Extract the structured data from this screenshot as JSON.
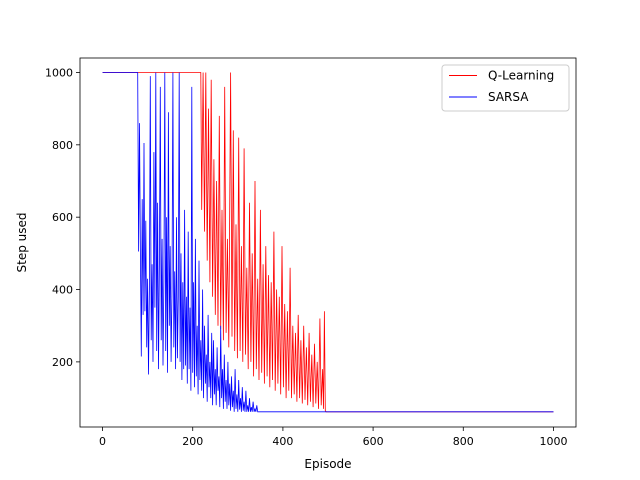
{
  "chart_data": {
    "type": "line",
    "title": "",
    "xlabel": "Episode",
    "ylabel": "Step used",
    "xlim": [
      -50,
      1050
    ],
    "ylim": [
      20,
      1040
    ],
    "xticks": [
      0,
      200,
      400,
      600,
      800,
      1000
    ],
    "yticks": [
      200,
      400,
      600,
      800,
      1000
    ],
    "grid": false,
    "legend_position": "top-right",
    "series": [
      {
        "name": "Q-Learning",
        "color": "#ff0000",
        "points": [
          [
            0,
            1000
          ],
          [
            218,
            1000
          ],
          [
            220,
            620
          ],
          [
            223,
            1000
          ],
          [
            226,
            560
          ],
          [
            229,
            1000
          ],
          [
            232,
            480
          ],
          [
            235,
            900
          ],
          [
            238,
            420
          ],
          [
            241,
            980
          ],
          [
            244,
            380
          ],
          [
            247,
            760
          ],
          [
            250,
            330
          ],
          [
            253,
            700
          ],
          [
            256,
            300
          ],
          [
            259,
            880
          ],
          [
            262,
            290
          ],
          [
            265,
            620
          ],
          [
            268,
            260
          ],
          [
            271,
            960
          ],
          [
            274,
            280
          ],
          [
            277,
            540
          ],
          [
            280,
            240
          ],
          [
            284,
            1000
          ],
          [
            287,
            270
          ],
          [
            290,
            840
          ],
          [
            293,
            230
          ],
          [
            296,
            580
          ],
          [
            299,
            210
          ],
          [
            302,
            820
          ],
          [
            305,
            230
          ],
          [
            308,
            520
          ],
          [
            311,
            200
          ],
          [
            314,
            790
          ],
          [
            317,
            220
          ],
          [
            320,
            460
          ],
          [
            323,
            180
          ],
          [
            326,
            640
          ],
          [
            329,
            200
          ],
          [
            332,
            500
          ],
          [
            335,
            160
          ],
          [
            338,
            700
          ],
          [
            341,
            180
          ],
          [
            344,
            430
          ],
          [
            347,
            150
          ],
          [
            350,
            620
          ],
          [
            353,
            170
          ],
          [
            356,
            470
          ],
          [
            359,
            140
          ],
          [
            362,
            520
          ],
          [
            365,
            160
          ],
          [
            368,
            440
          ],
          [
            371,
            130
          ],
          [
            374,
            420
          ],
          [
            377,
            150
          ],
          [
            380,
            560
          ],
          [
            383,
            120
          ],
          [
            386,
            400
          ],
          [
            389,
            140
          ],
          [
            392,
            380
          ],
          [
            395,
            110
          ],
          [
            398,
            520
          ],
          [
            401,
            130
          ],
          [
            404,
            360
          ],
          [
            407,
            100
          ],
          [
            410,
            340
          ],
          [
            413,
            120
          ],
          [
            416,
            460
          ],
          [
            419,
            100
          ],
          [
            422,
            300
          ],
          [
            425,
            110
          ],
          [
            428,
            280
          ],
          [
            431,
            90
          ],
          [
            434,
            330
          ],
          [
            437,
            100
          ],
          [
            440,
            260
          ],
          [
            443,
            85
          ],
          [
            446,
            300
          ],
          [
            449,
            95
          ],
          [
            452,
            240
          ],
          [
            455,
            80
          ],
          [
            458,
            280
          ],
          [
            461,
            90
          ],
          [
            464,
            220
          ],
          [
            467,
            75
          ],
          [
            470,
            250
          ],
          [
            473,
            85
          ],
          [
            476,
            200
          ],
          [
            479,
            70
          ],
          [
            482,
            320
          ],
          [
            485,
            80
          ],
          [
            488,
            180
          ],
          [
            490,
            70
          ],
          [
            492,
            340
          ],
          [
            494,
            65
          ],
          [
            496,
            62
          ],
          [
            1000,
            62
          ]
        ]
      },
      {
        "name": "SARSA",
        "color": "#0000ff",
        "points": [
          [
            0,
            1000
          ],
          [
            78,
            1000
          ],
          [
            80,
            505
          ],
          [
            82,
            860
          ],
          [
            84,
            500
          ],
          [
            86,
            215
          ],
          [
            88,
            650
          ],
          [
            90,
            330
          ],
          [
            92,
            805
          ],
          [
            94,
            340
          ],
          [
            96,
            590
          ],
          [
            98,
            240
          ],
          [
            100,
            430
          ],
          [
            102,
            165
          ],
          [
            104,
            400
          ],
          [
            106,
            990
          ],
          [
            108,
            260
          ],
          [
            110,
            470
          ],
          [
            112,
            200
          ],
          [
            114,
            780
          ],
          [
            116,
            350
          ],
          [
            118,
            1000
          ],
          [
            120,
            230
          ],
          [
            122,
            640
          ],
          [
            124,
            180
          ],
          [
            126,
            470
          ],
          [
            128,
            960
          ],
          [
            130,
            260
          ],
          [
            132,
            540
          ],
          [
            134,
            190
          ],
          [
            136,
            430
          ],
          [
            138,
            1000
          ],
          [
            140,
            230
          ],
          [
            142,
            600
          ],
          [
            144,
            170
          ],
          [
            146,
            890
          ],
          [
            148,
            300
          ],
          [
            150,
            520
          ],
          [
            152,
            200
          ],
          [
            154,
            400
          ],
          [
            156,
            1000
          ],
          [
            158,
            240
          ],
          [
            160,
            450
          ],
          [
            162,
            180
          ],
          [
            164,
            600
          ],
          [
            166,
            210
          ],
          [
            168,
            380
          ],
          [
            170,
            1000
          ],
          [
            172,
            200
          ],
          [
            174,
            500
          ],
          [
            176,
            150
          ],
          [
            178,
            420
          ],
          [
            180,
            180
          ],
          [
            182,
            620
          ],
          [
            184,
            190
          ],
          [
            186,
            380
          ],
          [
            188,
            140
          ],
          [
            190,
            560
          ],
          [
            192,
            180
          ],
          [
            194,
            350
          ],
          [
            196,
            120
          ],
          [
            198,
            960
          ],
          [
            200,
            170
          ],
          [
            202,
            420
          ],
          [
            204,
            130
          ],
          [
            206,
            540
          ],
          [
            208,
            160
          ],
          [
            210,
            300
          ],
          [
            212,
            110
          ],
          [
            214,
            480
          ],
          [
            216,
            150
          ],
          [
            218,
            260
          ],
          [
            220,
            120
          ],
          [
            222,
            400
          ],
          [
            224,
            100
          ],
          [
            226,
            300
          ],
          [
            228,
            140
          ],
          [
            230,
            220
          ],
          [
            232,
            90
          ],
          [
            234,
            330
          ],
          [
            236,
            130
          ],
          [
            238,
            200
          ],
          [
            240,
            100
          ],
          [
            242,
            280
          ],
          [
            244,
            80
          ],
          [
            246,
            260
          ],
          [
            248,
            110
          ],
          [
            250,
            180
          ],
          [
            252,
            80
          ],
          [
            254,
            240
          ],
          [
            256,
            120
          ],
          [
            258,
            160
          ],
          [
            260,
            75
          ],
          [
            262,
            300
          ],
          [
            264,
            100
          ],
          [
            266,
            180
          ],
          [
            268,
            70
          ],
          [
            270,
            220
          ],
          [
            272,
            90
          ],
          [
            274,
            150
          ],
          [
            276,
            70
          ],
          [
            278,
            200
          ],
          [
            280,
            80
          ],
          [
            282,
            140
          ],
          [
            284,
            65
          ],
          [
            286,
            160
          ],
          [
            288,
            75
          ],
          [
            290,
            120
          ],
          [
            292,
            62
          ],
          [
            294,
            180
          ],
          [
            296,
            70
          ],
          [
            298,
            110
          ],
          [
            300,
            62
          ],
          [
            302,
            150
          ],
          [
            304,
            68
          ],
          [
            306,
            100
          ],
          [
            308,
            62
          ],
          [
            310,
            130
          ],
          [
            312,
            65
          ],
          [
            314,
            90
          ],
          [
            316,
            62
          ],
          [
            318,
            120
          ],
          [
            320,
            62
          ],
          [
            322,
            80
          ],
          [
            324,
            62
          ],
          [
            326,
            100
          ],
          [
            328,
            62
          ],
          [
            330,
            75
          ],
          [
            332,
            62
          ],
          [
            334,
            90
          ],
          [
            336,
            62
          ],
          [
            338,
            70
          ],
          [
            340,
            62
          ],
          [
            342,
            80
          ],
          [
            344,
            62
          ],
          [
            1000,
            62
          ]
        ]
      }
    ]
  }
}
